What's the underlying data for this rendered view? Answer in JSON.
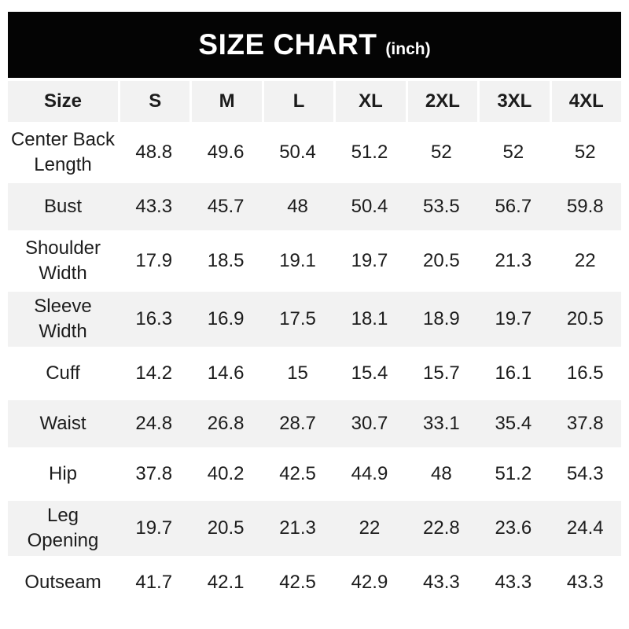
{
  "title": {
    "main": "SIZE CHART",
    "unit": "(inch)"
  },
  "colors": {
    "title_bar_bg": "#040404",
    "title_bar_text": "#ffffff",
    "row_alt_bg": "#f2f2f2",
    "row_bg": "#ffffff",
    "text": "#1c1c1c"
  },
  "chart_data": {
    "type": "table",
    "title": "SIZE CHART (inch)",
    "columns": [
      "Size",
      "S",
      "M",
      "L",
      "XL",
      "2XL",
      "3XL",
      "4XL"
    ],
    "rows": [
      {
        "label": "Center Back Length",
        "label_lines": [
          "Center Back",
          "Length"
        ],
        "values": [
          "48.8",
          "49.6",
          "50.4",
          "51.2",
          "52",
          "52",
          "52"
        ]
      },
      {
        "label": "Bust",
        "label_lines": [
          "Bust"
        ],
        "values": [
          "43.3",
          "45.7",
          "48",
          "50.4",
          "53.5",
          "56.7",
          "59.8"
        ]
      },
      {
        "label": "Shoulder Width",
        "label_lines": [
          "Shoulder",
          "Width"
        ],
        "values": [
          "17.9",
          "18.5",
          "19.1",
          "19.7",
          "20.5",
          "21.3",
          "22"
        ]
      },
      {
        "label": "Sleeve Width",
        "label_lines": [
          "Sleeve",
          "Width"
        ],
        "values": [
          "16.3",
          "16.9",
          "17.5",
          "18.1",
          "18.9",
          "19.7",
          "20.5"
        ]
      },
      {
        "label": "Cuff",
        "label_lines": [
          "Cuff"
        ],
        "values": [
          "14.2",
          "14.6",
          "15",
          "15.4",
          "15.7",
          "16.1",
          "16.5"
        ]
      },
      {
        "label": "Waist",
        "label_lines": [
          "Waist"
        ],
        "values": [
          "24.8",
          "26.8",
          "28.7",
          "30.7",
          "33.1",
          "35.4",
          "37.8"
        ]
      },
      {
        "label": "Hip",
        "label_lines": [
          "Hip"
        ],
        "values": [
          "37.8",
          "40.2",
          "42.5",
          "44.9",
          "48",
          "51.2",
          "54.3"
        ]
      },
      {
        "label": "Leg Opening",
        "label_lines": [
          "Leg",
          "Opening"
        ],
        "values": [
          "19.7",
          "20.5",
          "21.3",
          "22",
          "22.8",
          "23.6",
          "24.4"
        ]
      },
      {
        "label": "Outseam",
        "label_lines": [
          "Outseam"
        ],
        "values": [
          "41.7",
          "42.1",
          "42.5",
          "42.9",
          "43.3",
          "43.3",
          "43.3"
        ]
      }
    ],
    "layout": {
      "alternating_row_shading": "gray on even rows (Bust, Sleeve Width, Waist, Leg Opening) and header row",
      "header_dividers": "thin white vertical gaps between header cells only"
    }
  }
}
